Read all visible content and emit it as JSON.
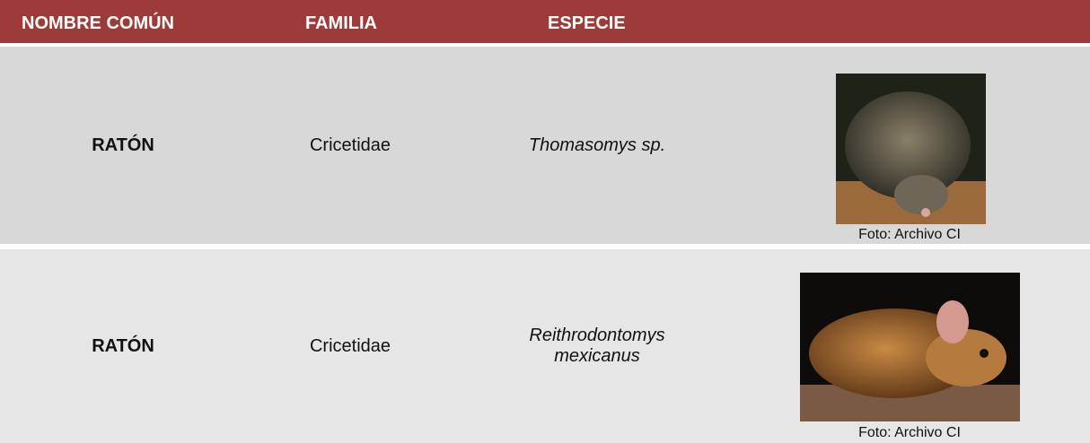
{
  "header": {
    "columns": [
      "NOMBRE COMÚN",
      "FAMILIA",
      "ESPECIE"
    ]
  },
  "table": {
    "rows": [
      {
        "common": "RATÓN",
        "family": "Cricetidae",
        "species": "Thomasomys sp.",
        "caption": "Foto: Archivo CI"
      },
      {
        "common": "RATÓN",
        "family": "Cricetidae",
        "species": "Reithrodontomys mexicanus",
        "caption": "Foto: Archivo CI"
      }
    ]
  }
}
